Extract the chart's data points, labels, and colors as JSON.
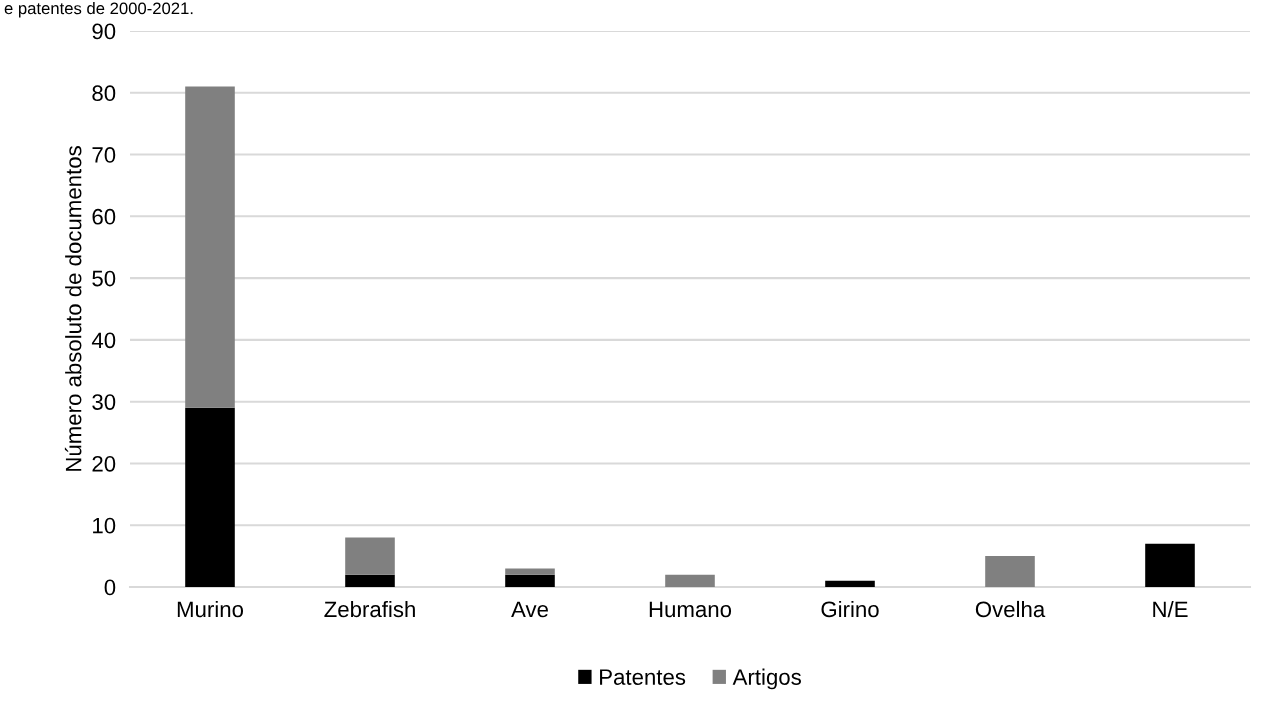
{
  "chart_data": {
    "type": "bar",
    "title": "e patentes de 2000-2021.",
    "ylabel": "Número absoluto de documentos",
    "categories": [
      "Murino",
      "Zebrafish",
      "Ave",
      "Humano",
      "Girino",
      "Ovelha",
      "N/E"
    ],
    "series": [
      {
        "name": "Patentes",
        "color": "#000000",
        "values": [
          29,
          2,
          2,
          0,
          1,
          0,
          7
        ]
      },
      {
        "name": "Artigos",
        "color": "#808080",
        "values": [
          52,
          6,
          1,
          2,
          0,
          5,
          0
        ]
      }
    ],
    "stacked": true,
    "ylim": [
      0,
      90
    ],
    "yticks": [
      0,
      10,
      20,
      30,
      40,
      50,
      60,
      70,
      80,
      90
    ],
    "grid": "y",
    "legend": "bottom"
  }
}
